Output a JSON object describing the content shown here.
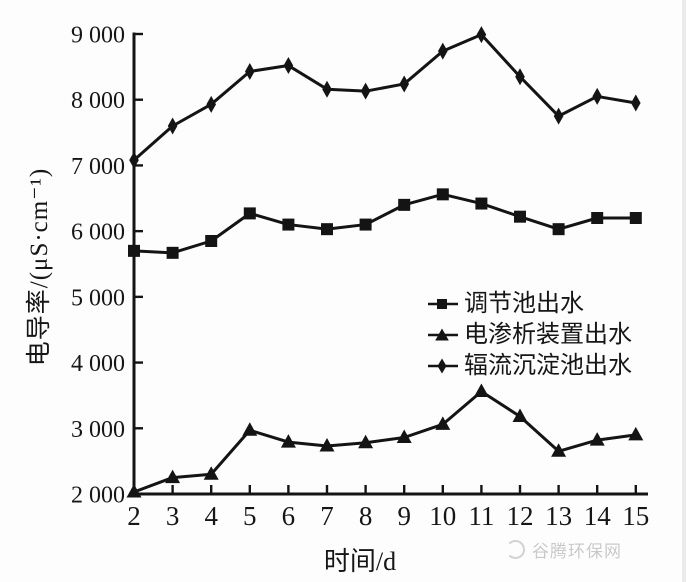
{
  "figure": {
    "background": "#fdfdfd",
    "watermark": {
      "text": "谷腾环保网",
      "color": "#c9c9c9"
    }
  },
  "chart_data": {
    "type": "line",
    "title": "",
    "xlabel": "时间/d",
    "ylabel": "电导率/(μS·cm⁻¹)",
    "x": [
      2,
      3,
      4,
      5,
      6,
      7,
      8,
      9,
      10,
      11,
      12,
      13,
      14,
      15
    ],
    "xlim": [
      2,
      15
    ],
    "ylim": [
      2000,
      9000
    ],
    "grid": false,
    "legend_position": "inside-right-middle",
    "line_color": "#141414",
    "x_tick_labels": [
      "2",
      "3",
      "4",
      "5",
      "6",
      "7",
      "8",
      "9",
      "10",
      "11",
      "12",
      "13",
      "14",
      "15"
    ],
    "y_ticks": [
      {
        "value": 2000,
        "label": "2 000"
      },
      {
        "value": 3000,
        "label": "3 000"
      },
      {
        "value": 4000,
        "label": "4 000"
      },
      {
        "value": 5000,
        "label": "5 000"
      },
      {
        "value": 6000,
        "label": "6 000"
      },
      {
        "value": 7000,
        "label": "7 000"
      },
      {
        "value": 8000,
        "label": "8 000"
      },
      {
        "value": 9000,
        "label": "9 000"
      }
    ],
    "series": [
      {
        "name": "调节池出水",
        "marker": "square",
        "values": [
          5700,
          5670,
          5850,
          6270,
          6100,
          6030,
          6100,
          6400,
          6560,
          6420,
          6220,
          6030,
          6200,
          6200
        ]
      },
      {
        "name": "电渗析装置出水",
        "marker": "triangle-up",
        "values": [
          2030,
          2250,
          2300,
          2970,
          2790,
          2730,
          2780,
          2860,
          3060,
          3560,
          3180,
          2650,
          2820,
          2900
        ]
      },
      {
        "name": "辐流沉淀池出水",
        "marker": "diamond",
        "values": [
          7080,
          7600,
          7930,
          8430,
          8520,
          8160,
          8130,
          8240,
          8740,
          8990,
          8350,
          7750,
          8050,
          7950
        ]
      }
    ]
  }
}
